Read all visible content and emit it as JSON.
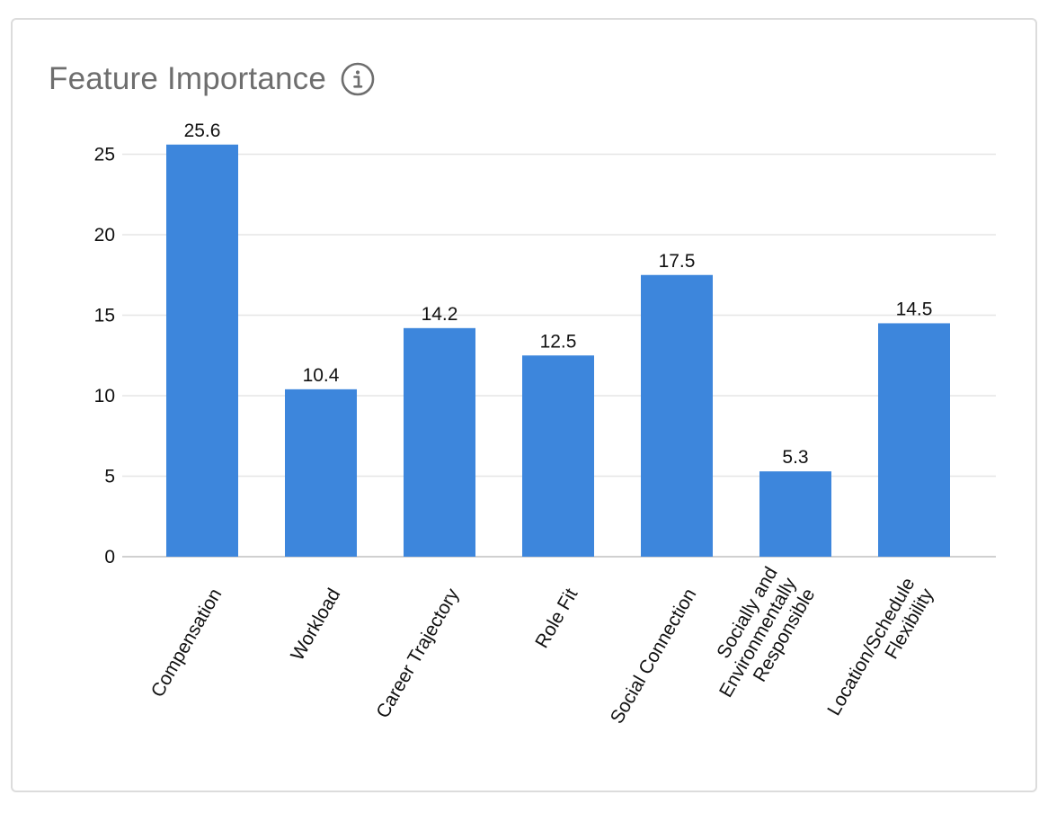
{
  "card": {
    "title": "Feature Importance",
    "info_icon": "info-circle-icon"
  },
  "colors": {
    "bar": "#3d86dc",
    "gridline": "#e6e6e6",
    "axis": "#d0d0d0",
    "title": "#6e6e6e",
    "text": "#111111"
  },
  "chart_data": {
    "type": "bar",
    "title": "Feature Importance",
    "xlabel": "",
    "ylabel": "",
    "categories": [
      [
        "Compensation"
      ],
      [
        "Workload"
      ],
      [
        "Career Trajectory"
      ],
      [
        "Role Fit"
      ],
      [
        "Social Connection"
      ],
      [
        "Socially and",
        "Environmentally",
        "Responsible"
      ],
      [
        "Location/Schedule",
        "Flexibility"
      ]
    ],
    "values": [
      25.6,
      10.4,
      14.2,
      12.5,
      17.5,
      5.3,
      14.5
    ],
    "value_labels": [
      "25.6",
      "10.4",
      "14.2",
      "12.5",
      "17.5",
      "5.3",
      "14.5"
    ],
    "ylim": [
      0,
      25
    ],
    "yticks": [
      0,
      5,
      10,
      15,
      20,
      25
    ],
    "grid": true,
    "legend": "none"
  }
}
